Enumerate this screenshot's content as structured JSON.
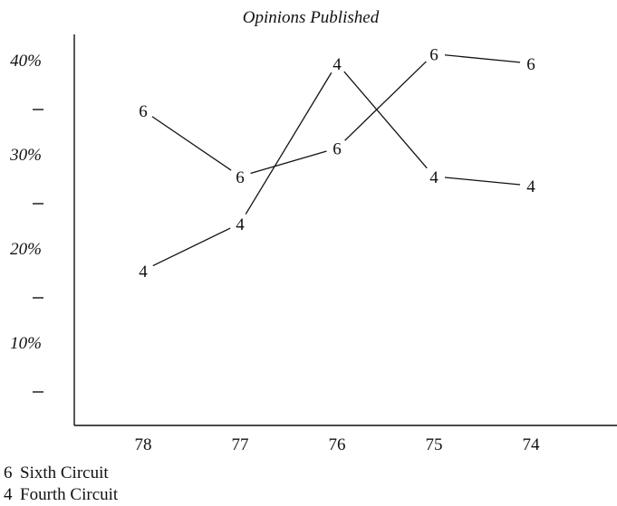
{
  "chart_data": {
    "type": "line",
    "title": "Opinions Published",
    "categories": [
      "78",
      "77",
      "76",
      "75",
      "74"
    ],
    "y_ticks": [
      {
        "value": 40,
        "label": "40%"
      },
      {
        "value": 35,
        "label": "–"
      },
      {
        "value": 30,
        "label": "30%"
      },
      {
        "value": 25,
        "label": "–"
      },
      {
        "value": 20,
        "label": "20%"
      },
      {
        "value": 15,
        "label": "–"
      },
      {
        "value": 10,
        "label": "10%"
      },
      {
        "value": 5,
        "label": "–"
      }
    ],
    "ylim": [
      0,
      42.5
    ],
    "series": [
      {
        "marker": "6",
        "name": "Sixth Circuit",
        "values": [
          35,
          28,
          31,
          41,
          40
        ]
      },
      {
        "marker": "4",
        "name": "Fourth Circuit",
        "values": [
          18,
          23,
          40,
          28,
          27
        ]
      }
    ],
    "legend": [
      {
        "marker": "6",
        "label": "Sixth Circuit"
      },
      {
        "marker": "4",
        "label": "Fourth Circuit"
      }
    ],
    "legend_position": "bottom-left",
    "grid": false
  }
}
